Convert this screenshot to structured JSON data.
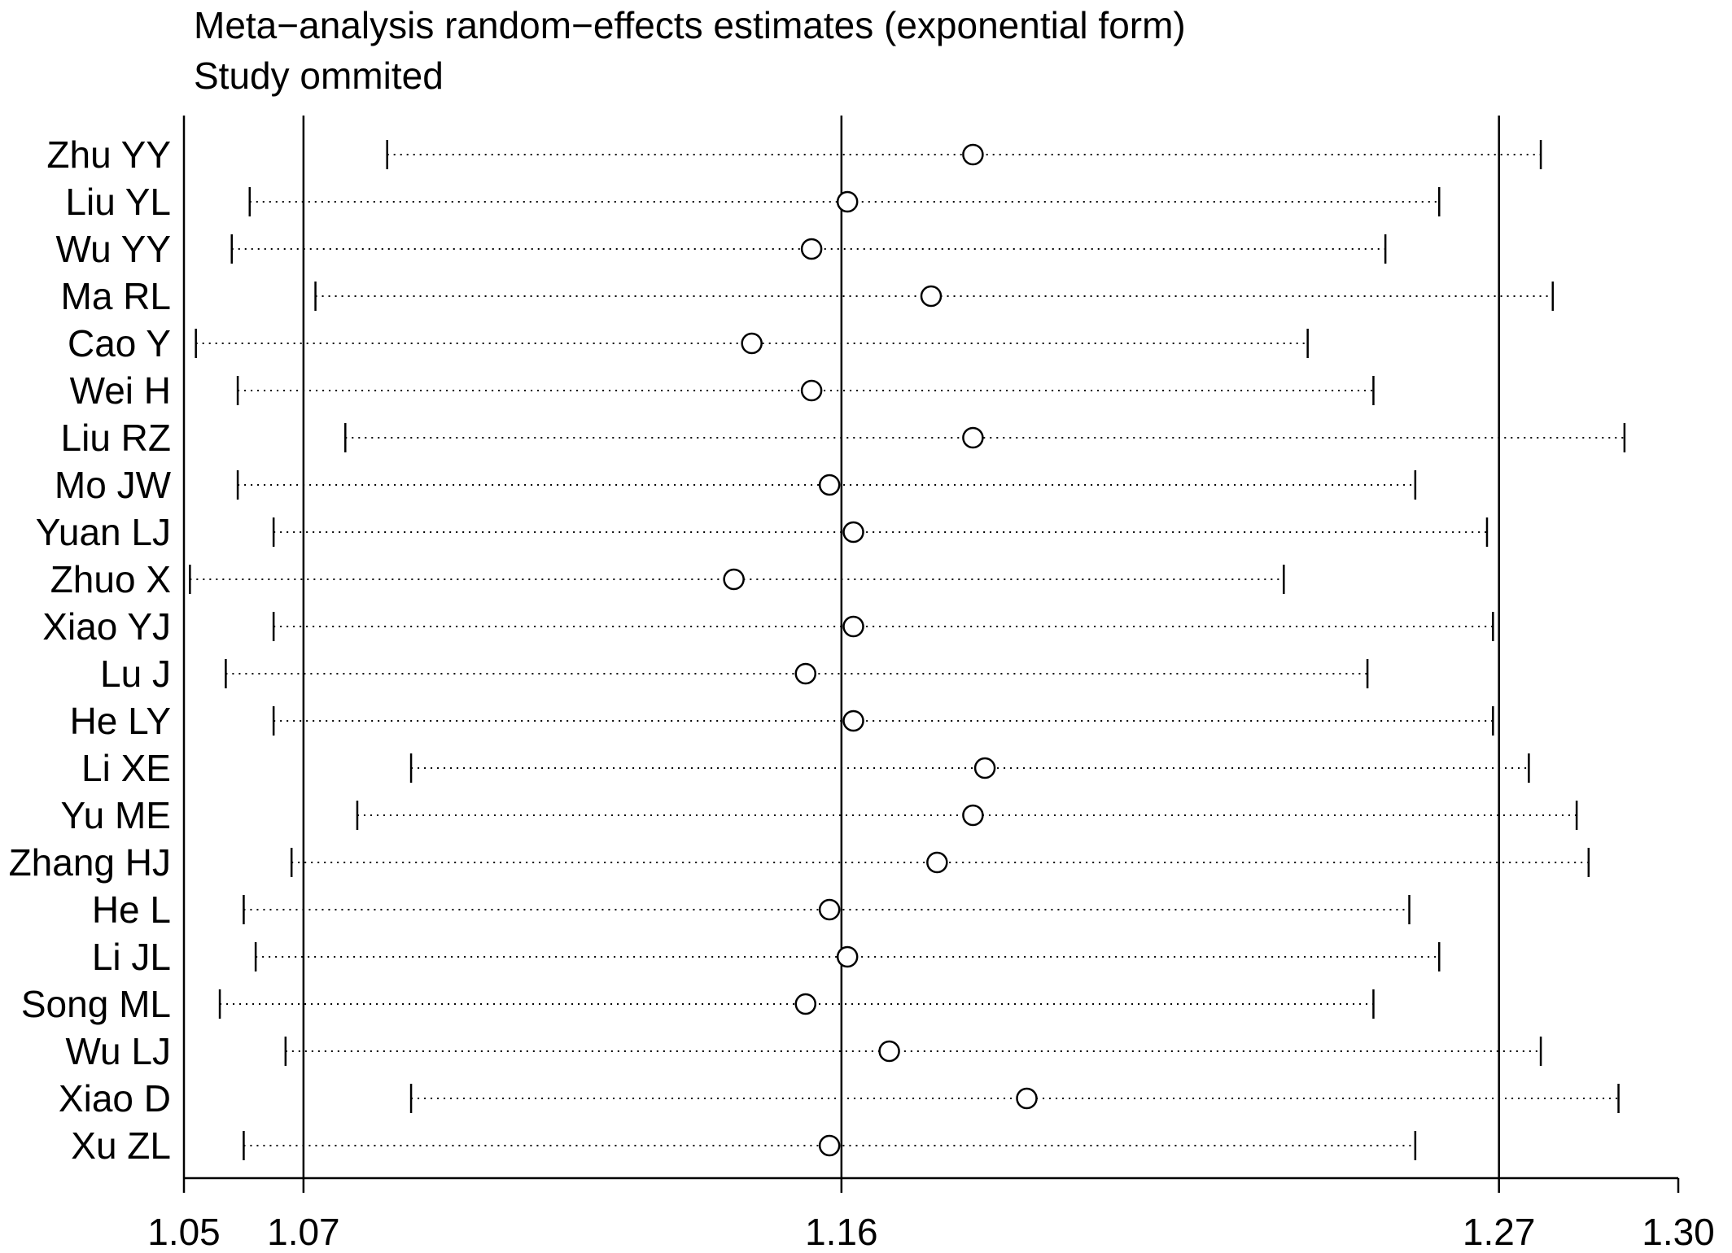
{
  "chart_data": {
    "type": "forest",
    "title": "Meta−analysis random−effects estimates (exponential form)",
    "subtitle": "Study ommited",
    "x_ticks": [
      1.05,
      1.07,
      1.16,
      1.27,
      1.3
    ],
    "x_tick_labels": [
      "1.05",
      "1.07",
      "1.16",
      "1.27",
      "1.30"
    ],
    "xlim": [
      1.05,
      1.3
    ],
    "reference_lines": [
      1.07,
      1.16,
      1.27
    ],
    "studies": [
      {
        "label": "Zhu YY",
        "lower": 1.084,
        "estimate": 1.182,
        "upper": 1.277
      },
      {
        "label": "Liu YL",
        "lower": 1.061,
        "estimate": 1.161,
        "upper": 1.26
      },
      {
        "label": "Wu YY",
        "lower": 1.058,
        "estimate": 1.155,
        "upper": 1.251
      },
      {
        "label": "Ma RL",
        "lower": 1.072,
        "estimate": 1.175,
        "upper": 1.279
      },
      {
        "label": "Cao Y",
        "lower": 1.052,
        "estimate": 1.145,
        "upper": 1.238
      },
      {
        "label": "Wei H",
        "lower": 1.059,
        "estimate": 1.155,
        "upper": 1.249
      },
      {
        "label": "Liu RZ",
        "lower": 1.077,
        "estimate": 1.182,
        "upper": 1.291
      },
      {
        "label": "Mo JW",
        "lower": 1.059,
        "estimate": 1.158,
        "upper": 1.256
      },
      {
        "label": "Yuan LJ",
        "lower": 1.065,
        "estimate": 1.162,
        "upper": 1.268
      },
      {
        "label": "Zhuo X",
        "lower": 1.051,
        "estimate": 1.142,
        "upper": 1.234
      },
      {
        "label": "Xiao YJ",
        "lower": 1.065,
        "estimate": 1.162,
        "upper": 1.269
      },
      {
        "label": "Lu J",
        "lower": 1.057,
        "estimate": 1.154,
        "upper": 1.248
      },
      {
        "label": "He LY",
        "lower": 1.065,
        "estimate": 1.162,
        "upper": 1.269
      },
      {
        "label": "Li XE",
        "lower": 1.088,
        "estimate": 1.184,
        "upper": 1.275
      },
      {
        "label": "Yu ME",
        "lower": 1.079,
        "estimate": 1.182,
        "upper": 1.283
      },
      {
        "label": "Zhang HJ",
        "lower": 1.068,
        "estimate": 1.176,
        "upper": 1.285
      },
      {
        "label": "He L",
        "lower": 1.06,
        "estimate": 1.158,
        "upper": 1.255
      },
      {
        "label": "Li JL",
        "lower": 1.062,
        "estimate": 1.161,
        "upper": 1.26
      },
      {
        "label": "Song ML",
        "lower": 1.056,
        "estimate": 1.154,
        "upper": 1.249
      },
      {
        "label": "Wu LJ",
        "lower": 1.067,
        "estimate": 1.168,
        "upper": 1.277
      },
      {
        "label": "Xiao D",
        "lower": 1.088,
        "estimate": 1.191,
        "upper": 1.29
      },
      {
        "label": "Xu ZL",
        "lower": 1.06,
        "estimate": 1.158,
        "upper": 1.256
      }
    ],
    "colors": {
      "line": "#000000",
      "background": "#ffffff"
    }
  }
}
